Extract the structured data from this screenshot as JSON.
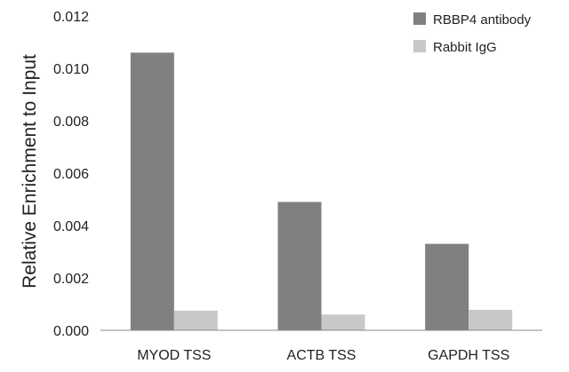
{
  "chart_data": {
    "type": "bar",
    "categories": [
      "MYOD TSS",
      "ACTB TSS",
      "GAPDH TSS"
    ],
    "series": [
      {
        "name": "RBBP4 antibody",
        "values": [
          0.0106,
          0.0049,
          0.0033
        ],
        "color": "#808080"
      },
      {
        "name": "Rabbit IgG",
        "values": [
          0.00075,
          0.0006,
          0.00078
        ],
        "color": "#c8c8c8"
      }
    ],
    "xlabel": "",
    "ylabel": "Relative Enrichment to Input",
    "ylim": [
      0,
      0.012
    ],
    "yticks": [
      "0.000",
      "0.002",
      "0.004",
      "0.006",
      "0.008",
      "0.010",
      "0.012"
    ],
    "grid": false,
    "legend_position": "top-right"
  }
}
